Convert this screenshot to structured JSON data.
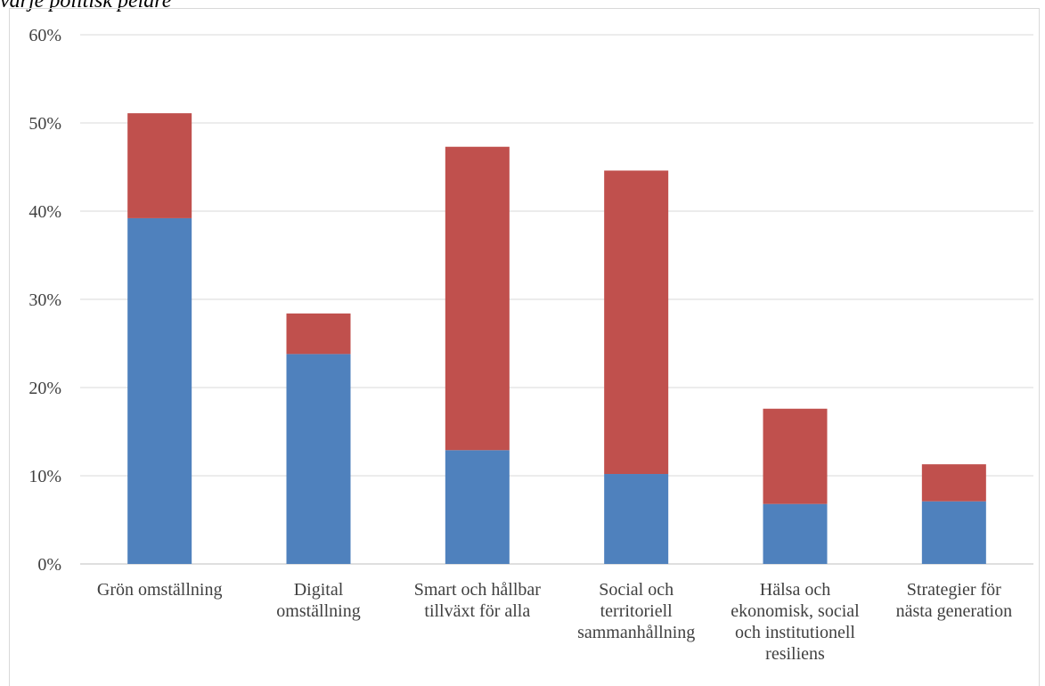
{
  "caption": "varje politisk pelare",
  "chart_data": {
    "type": "bar",
    "stacked": true,
    "categories": [
      [
        "Grön omställning"
      ],
      [
        "Digital",
        "omställning"
      ],
      [
        "Smart och hållbar",
        "tillväxt för alla"
      ],
      [
        "Social och",
        "territoriell",
        "sammanhållning"
      ],
      [
        "Hälsa och",
        "ekonomisk, social",
        "och institutionell",
        "resiliens"
      ],
      [
        "Strategier för",
        "nästa generation"
      ]
    ],
    "series": [
      {
        "color": "#4f81bd",
        "values": [
          39.2,
          23.8,
          12.9,
          10.2,
          6.8,
          7.1
        ]
      },
      {
        "color": "#c0504d",
        "values": [
          11.9,
          4.6,
          34.4,
          34.4,
          10.8,
          4.2
        ]
      }
    ],
    "yticks": [
      "0%",
      "10%",
      "20%",
      "30%",
      "40%",
      "50%",
      "60%"
    ],
    "ylim": [
      0,
      60
    ],
    "grid": true
  }
}
